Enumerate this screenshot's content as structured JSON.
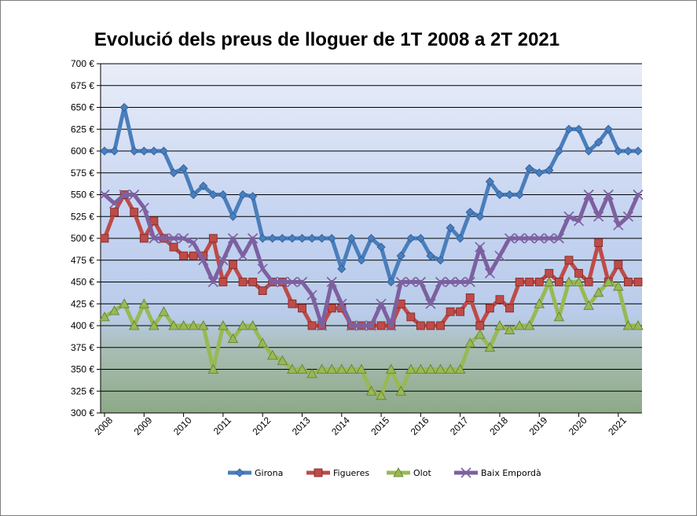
{
  "chart_data": {
    "type": "line",
    "title": "Evolució dels preus de lloguer de 1T 2008 a 2T 2021",
    "xlabel": "",
    "ylabel": "",
    "ylim": [
      300,
      700
    ],
    "y_ticks": [
      300,
      325,
      350,
      375,
      400,
      425,
      450,
      475,
      500,
      525,
      550,
      575,
      600,
      625,
      650,
      675,
      700
    ],
    "y_tick_suffix": " €",
    "x_tick_labels": [
      "2008",
      "2009",
      "2010",
      "2011",
      "2012",
      "2013",
      "2014",
      "2015",
      "2016",
      "2017",
      "2018",
      "2019",
      "2020",
      "2021"
    ],
    "x_start": [
      "1T 2008"
    ],
    "x_end": [
      "2T 2021"
    ],
    "grid": true,
    "legend_position": "bottom",
    "series": [
      {
        "name": "Girona",
        "color": "#4a7ebb",
        "marker": "diamond",
        "values": [
          600,
          600,
          650,
          600,
          600,
          600,
          600,
          575,
          580,
          550,
          560,
          550,
          550,
          525,
          550,
          548,
          500,
          500,
          500,
          500,
          500,
          500,
          500,
          500,
          465,
          500,
          475,
          500,
          490,
          450,
          480,
          500,
          500,
          480,
          475,
          512,
          500,
          530,
          525,
          565,
          550,
          550,
          550,
          580,
          575,
          578,
          600,
          625,
          625,
          600,
          610,
          625,
          600,
          600,
          600
        ]
      },
      {
        "name": "Figueres",
        "color": "#be4b48",
        "marker": "square",
        "values": [
          500,
          530,
          550,
          530,
          500,
          520,
          500,
          490,
          480,
          480,
          480,
          500,
          450,
          470,
          450,
          450,
          440,
          450,
          450,
          425,
          420,
          400,
          400,
          420,
          420,
          400,
          400,
          400,
          400,
          400,
          425,
          410,
          400,
          400,
          400,
          416,
          416,
          432,
          400,
          420,
          430,
          420,
          450,
          450,
          450,
          460,
          450,
          475,
          460,
          450,
          495,
          450,
          470,
          450,
          450
        ]
      },
      {
        "name": "Olot",
        "color": "#98b954",
        "marker": "triangle",
        "values": [
          410,
          417,
          425,
          400,
          425,
          400,
          416,
          400,
          400,
          400,
          400,
          350,
          400,
          385,
          400,
          400,
          380,
          366,
          360,
          350,
          350,
          345,
          350,
          350,
          350,
          350,
          350,
          325,
          320,
          350,
          325,
          350,
          350,
          350,
          350,
          350,
          350,
          380,
          390,
          375,
          400,
          395,
          400,
          400,
          425,
          450,
          410,
          450,
          450,
          423,
          438,
          450,
          445,
          400,
          400
        ]
      },
      {
        "name": "Baix Empordà",
        "color": "#7d60a0",
        "marker": "x",
        "values": [
          550,
          540,
          550,
          550,
          535,
          500,
          500,
          500,
          500,
          495,
          475,
          450,
          475,
          500,
          480,
          500,
          465,
          450,
          450,
          450,
          450,
          435,
          400,
          450,
          425,
          400,
          400,
          400,
          425,
          400,
          450,
          450,
          450,
          425,
          450,
          450,
          450,
          450,
          490,
          460,
          480,
          500,
          500,
          500,
          500,
          500,
          500,
          525,
          520,
          550,
          525,
          550,
          515,
          525,
          550
        ]
      }
    ]
  }
}
